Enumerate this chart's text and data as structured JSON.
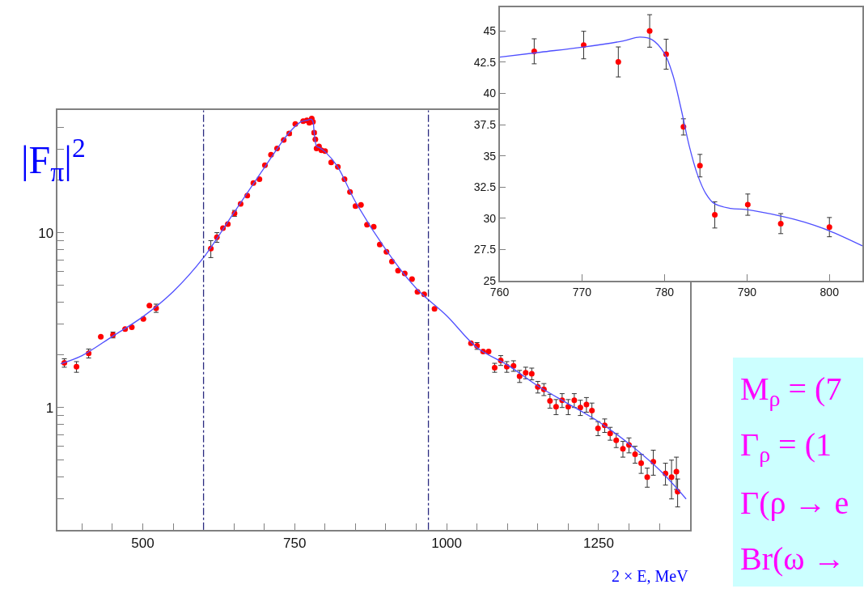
{
  "chart_data": [
    {
      "type": "scatter",
      "xlabel": "2 × E, MeV",
      "ylabel": "|F$_{π}$|$^{2}$",
      "log": "y",
      "xlim": [
        360,
        1400
      ],
      "ylim": [
        0.2,
        50
      ],
      "xticks": [
        {
          "value": 400,
          "label": null
        },
        {
          "value": 450,
          "label": null
        },
        500,
        {
          "value": 550,
          "label": null
        },
        {
          "value": 600,
          "label": null
        },
        {
          "value": 650,
          "label": null
        },
        {
          "value": 700,
          "label": null
        },
        750,
        {
          "value": 800,
          "label": null
        },
        {
          "value": 850,
          "label": null
        },
        {
          "value": 900,
          "label": null
        },
        {
          "value": 950,
          "label": null
        },
        1000,
        {
          "value": 1050,
          "label": null
        },
        {
          "value": 1100,
          "label": null
        },
        {
          "value": 1150,
          "label": null
        },
        {
          "value": 1200,
          "label": null
        },
        1250,
        {
          "value": 1300,
          "label": null
        },
        {
          "value": 1350,
          "label": null
        }
      ],
      "yticks": [
        {
          "value": 0.2,
          "label": null
        },
        {
          "value": 0.3,
          "label": null
        },
        {
          "value": 0.4,
          "label": null
        },
        {
          "value": 0.5,
          "label": null
        },
        {
          "value": 0.6,
          "label": null
        },
        {
          "value": 0.7,
          "label": null
        },
        {
          "value": 0.8,
          "label": null
        },
        {
          "value": 0.9,
          "label": null
        },
        1,
        {
          "value": 2,
          "label": null
        },
        {
          "value": 3,
          "label": null
        },
        {
          "value": 4,
          "label": null
        },
        {
          "value": 5,
          "label": null
        },
        {
          "value": 6,
          "label": null
        },
        {
          "value": 7,
          "label": null
        },
        {
          "value": 8,
          "label": null
        },
        {
          "value": 9,
          "label": null
        },
        10,
        {
          "value": 20,
          "label": null
        },
        {
          "value": 30,
          "label": null
        },
        {
          "value": 40,
          "label": null
        },
        {
          "value": 50,
          "label": null
        }
      ],
      "ref_lines": [
        {
          "axis": "x",
          "value": 600,
          "color": "#2b2b80",
          "line_style": "dashdot"
        },
        {
          "axis": "x",
          "value": 970,
          "color": "#2b2b80",
          "line_style": "dashdot"
        }
      ],
      "series": [
        {
          "type": "scatter",
          "color": "#ff0000",
          "marker": "circle",
          "x": [
            371,
            391,
            411,
            431,
            451,
            471,
            482,
            501,
            511,
            522,
            612,
            622,
            632,
            640,
            651,
            661,
            672,
            682,
            692,
            701,
            711,
            721,
            732,
            741,
            751,
            764,
            770,
            774,
            778,
            780,
            782,
            784,
            786,
            790,
            794,
            800,
            810,
            821,
            832,
            841,
            850,
            859,
            869,
            880,
            890,
            901,
            910,
            920,
            931,
            943,
            952,
            963,
            980,
            1040,
            1050,
            1060,
            1069,
            1079,
            1089,
            1099,
            1110,
            1120,
            1130,
            1140,
            1150,
            1160,
            1170,
            1180,
            1190,
            1200,
            1210,
            1220,
            1230,
            1239,
            1249,
            1260,
            1269,
            1279,
            1290,
            1300,
            1310,
            1320,
            1330,
            1340,
            1360,
            1370,
            1378,
            1380
          ],
          "values": [
            1.8,
            1.71,
            2.04,
            2.54,
            2.6,
            2.81,
            2.88,
            3.21,
            3.83,
            3.7,
            8.1,
            9.4,
            10.6,
            11.2,
            12.9,
            14.6,
            16.3,
            19.2,
            20.2,
            24.3,
            27.9,
            30.3,
            33.9,
            36.9,
            41.8,
            43.4,
            43.9,
            42.5,
            45.0,
            43.1,
            37.3,
            34.2,
            30.3,
            31.1,
            29.6,
            29.3,
            25.2,
            23.8,
            20.2,
            17.1,
            14.2,
            14.4,
            11.1,
            10.8,
            8.55,
            7.78,
            6.83,
            6.06,
            5.84,
            5.42,
            4.58,
            4.44,
            3.67,
            2.33,
            2.25,
            2.09,
            2.09,
            1.69,
            1.86,
            1.71,
            1.73,
            1.51,
            1.58,
            1.56,
            1.31,
            1.27,
            1.09,
            1.01,
            1.1,
            1.01,
            1.1,
            1.0,
            1.04,
            0.96,
            0.76,
            0.79,
            0.71,
            0.65,
            0.58,
            0.61,
            0.54,
            0.48,
            0.4,
            0.49,
            0.42,
            0.4,
            0.43,
            0.33
          ],
          "errors": [
            0.1,
            0.12,
            0.12,
            null,
            0.1,
            null,
            null,
            null,
            null,
            0.2,
            0.9,
            0.6,
            null,
            null,
            0.5,
            null,
            null,
            null,
            null,
            null,
            null,
            null,
            null,
            0.8,
            null,
            null,
            null,
            null,
            null,
            null,
            0.7,
            null,
            null,
            null,
            null,
            null,
            null,
            null,
            null,
            null,
            null,
            null,
            null,
            null,
            null,
            null,
            null,
            null,
            null,
            null,
            null,
            null,
            null,
            null,
            0.1,
            null,
            null,
            0.1,
            0.12,
            0.12,
            0.12,
            0.12,
            0.12,
            0.12,
            0.1,
            0.1,
            0.1,
            0.1,
            0.1,
            0.1,
            0.1,
            0.1,
            0.1,
            0.1,
            0.07,
            0.07,
            0.06,
            0.06,
            0.06,
            0.06,
            0.06,
            0.06,
            0.05,
            0.08,
            0.06,
            0.1,
            0.09,
            0.06
          ]
        },
        {
          "type": "line",
          "color": "#4f4fff",
          "line_style": "solid",
          "x": [
            365,
            400,
            450,
            500,
            550,
            600,
            650,
            700,
            740,
            760,
            770,
            777,
            780,
            782,
            786,
            790,
            800,
            820,
            850,
            900,
            950,
            1000,
            1050,
            1100,
            1150,
            1200,
            1250,
            1300,
            1350,
            1394
          ],
          "values": [
            1.78,
            1.98,
            2.55,
            3.3,
            4.6,
            7.2,
            13,
            23.5,
            37,
            43,
            43.9,
            44.5,
            43.2,
            37.5,
            31.2,
            30.7,
            29,
            24,
            15,
            8,
            4.8,
            3.35,
            2.2,
            1.75,
            1.33,
            1.05,
            0.83,
            0.62,
            0.44,
            0.3
          ]
        }
      ]
    },
    {
      "type": "scatter",
      "xlim": [
        760,
        804
      ],
      "ylim": [
        25,
        46.9
      ],
      "xticks": [
        760,
        770,
        780,
        790,
        800
      ],
      "yticks": [
        25,
        27.5,
        30,
        32.5,
        35,
        37.5,
        40,
        42.5,
        45
      ],
      "series": [
        {
          "type": "scatter",
          "color": "#ff0000",
          "marker": "circle",
          "x": [
            764.2,
            770.2,
            774.4,
            778.2,
            780.2,
            782.3,
            784.3,
            786.1,
            790.1,
            794.1,
            800
          ],
          "values": [
            43.37,
            43.87,
            42.52,
            45.0,
            43.14,
            37.32,
            34.22,
            30.28,
            31.1,
            29.58,
            29.3
          ],
          "errors": [
            1.0,
            1.1,
            1.2,
            1.3,
            1.2,
            0.65,
            0.9,
            1.05,
            0.85,
            0.8,
            0.77
          ]
        },
        {
          "type": "line",
          "color": "#4f4fff",
          "line_style": "solid",
          "x": [
            760,
            765,
            770,
            775,
            777,
            778.5,
            780,
            781,
            782,
            783,
            784,
            785,
            786,
            788,
            790,
            794,
            797,
            800,
            804
          ],
          "values": [
            42.9,
            43.3,
            43.7,
            44.2,
            44.5,
            44.3,
            43.2,
            41.5,
            38.8,
            35.8,
            33.5,
            32.0,
            31.2,
            30.8,
            30.7,
            30.2,
            29.7,
            29.0,
            27.8
          ]
        }
      ]
    },
    {
      "type": "other",
      "color": "#ff00ff",
      "annotations": [
        "M$_{ρ}$ = (7",
        "Γ$_{ρ}$ = (1",
        "Γ(ρ → e",
        "Br(ω →"
      ]
    }
  ]
}
